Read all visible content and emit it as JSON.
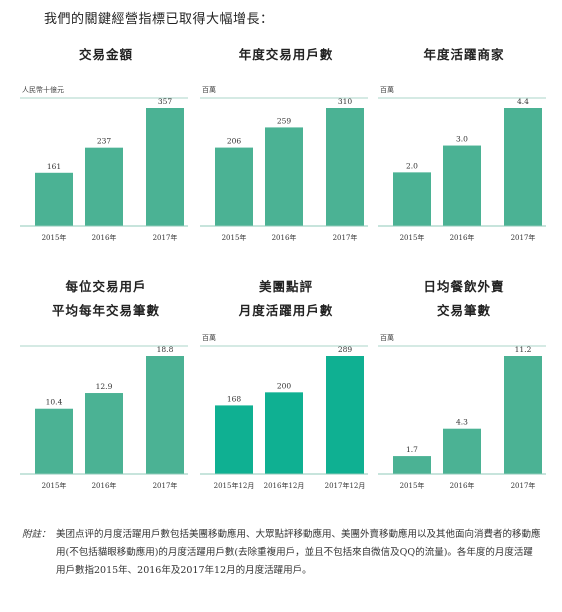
{
  "intro": "我們的關鍵經營指標已取得大幅增長：",
  "colors": {
    "bar": "#4bb294",
    "bar_highlight": "#0fb092",
    "axis": "#8fc9b8"
  },
  "chart_data": [
    {
      "type": "bar",
      "title_lines": [
        "交易金額"
      ],
      "unit": "人民幣十億元",
      "categories": [
        "2015年",
        "2016年",
        "2017年"
      ],
      "values": [
        161,
        237,
        357
      ],
      "value_labels": [
        "161",
        "237",
        "357"
      ],
      "ylim": [
        0,
        357
      ]
    },
    {
      "type": "bar",
      "title_lines": [
        "年度交易用戶數"
      ],
      "unit": "百萬",
      "categories": [
        "2015年",
        "2016年",
        "2017年"
      ],
      "values": [
        206,
        259,
        310
      ],
      "value_labels": [
        "206",
        "259",
        "310"
      ],
      "ylim": [
        0,
        310
      ]
    },
    {
      "type": "bar",
      "title_lines": [
        "年度活躍商家"
      ],
      "unit": "百萬",
      "categories": [
        "2015年",
        "2016年",
        "2017年"
      ],
      "values": [
        2.0,
        3.0,
        4.4
      ],
      "value_labels": [
        "2.0",
        "3.0",
        "4.4"
      ],
      "ylim": [
        0,
        4.4
      ]
    },
    {
      "type": "bar",
      "title_lines": [
        "每位交易用戶",
        "平均每年交易筆數"
      ],
      "unit": "",
      "categories": [
        "2015年",
        "2016年",
        "2017年"
      ],
      "values": [
        10.4,
        12.9,
        18.8
      ],
      "value_labels": [
        "10.4",
        "12.9",
        "18.8"
      ],
      "ylim": [
        0,
        18.8
      ]
    },
    {
      "type": "bar",
      "title_lines": [
        "美團點評",
        "月度活躍用戶數"
      ],
      "unit": "百萬",
      "categories": [
        "2015年12月",
        "2016年12月",
        "2017年12月"
      ],
      "values": [
        168,
        200,
        289
      ],
      "value_labels": [
        "168",
        "200",
        "289"
      ],
      "ylim": [
        0,
        289
      ],
      "highlight": true
    },
    {
      "type": "bar",
      "title_lines": [
        "日均餐飲外賣",
        "交易筆數"
      ],
      "unit": "百萬",
      "categories": [
        "2015年",
        "2016年",
        "2017年"
      ],
      "values": [
        1.7,
        4.3,
        11.2
      ],
      "value_labels": [
        "1.7",
        "4.3",
        "11.2"
      ],
      "ylim": [
        0,
        11.2
      ]
    }
  ],
  "footnote": {
    "label": "附註：",
    "text": "美团点评的月度活躍用戶數包括美團移動應用、大眾點評移動應用、美團外賣移動應用以及其他面向消費者的移動應用(不包括貓眼移動應用)的月度活躍用戶數(去除重複用戶，並且不包括來自微信及QQ的流量)。各年度的月度活躍用戶數指2015年、2016年及2017年12月的月度活躍用戶。"
  }
}
